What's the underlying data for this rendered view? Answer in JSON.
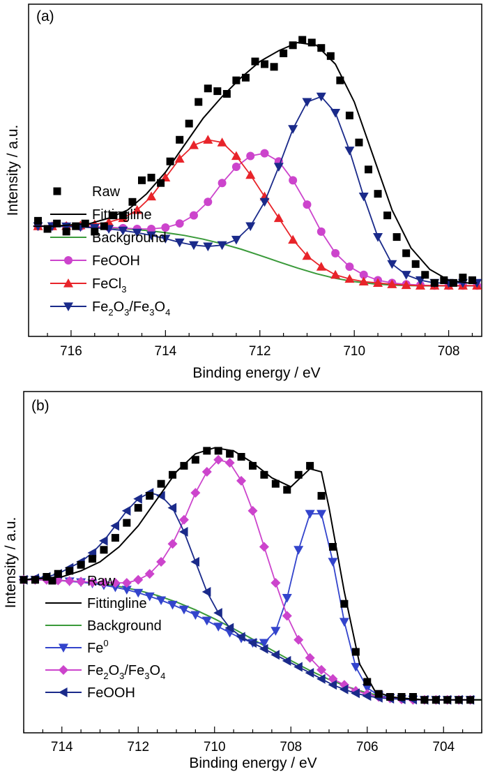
{
  "chart_data": [
    {
      "type": "scatter",
      "panel_label": "(a)",
      "xlabel": "Binding energy / eV",
      "ylabel": "Intensity / a.u.",
      "xlim": [
        716.9,
        707.3
      ],
      "x_reversed": true,
      "ylim": [
        0,
        1
      ],
      "xticks": [
        "716",
        "714",
        "712",
        "710",
        "708"
      ],
      "legend_position": "lower-left",
      "series": [
        {
          "name": "Raw",
          "style": "scatter",
          "marker": "square",
          "color": "#000000",
          "x": [
            716.7,
            716.5,
            716.3,
            716.1,
            715.9,
            715.7,
            715.5,
            715.3,
            715.1,
            714.9,
            714.7,
            714.5,
            714.3,
            714.1,
            713.9,
            713.7,
            713.5,
            713.3,
            713.1,
            712.9,
            712.7,
            712.5,
            712.3,
            712.1,
            711.9,
            711.7,
            711.5,
            711.3,
            711.1,
            710.9,
            710.7,
            710.5,
            710.3,
            710.1,
            709.9,
            709.7,
            709.5,
            709.3,
            709.1,
            708.9,
            708.7,
            708.5,
            708.3,
            708.1,
            707.9,
            707.7,
            707.5
          ],
          "values": [
            0.26,
            0.23,
            0.25,
            0.22,
            0.24,
            0.25,
            0.22,
            0.24,
            0.28,
            0.28,
            0.33,
            0.41,
            0.42,
            0.4,
            0.48,
            0.56,
            0.62,
            0.7,
            0.75,
            0.74,
            0.73,
            0.78,
            0.79,
            0.85,
            0.84,
            0.83,
            0.88,
            0.91,
            0.93,
            0.92,
            0.9,
            0.87,
            0.78,
            0.65,
            0.55,
            0.45,
            0.36,
            0.28,
            0.2,
            0.14,
            0.1,
            0.06,
            0.03,
            0.04,
            0.03,
            0.05,
            0.04
          ]
        },
        {
          "name": "Fitting line",
          "style": "line",
          "color": "#000000",
          "x": [
            716.8,
            716.4,
            716,
            715.6,
            715.2,
            714.8,
            714.4,
            714,
            713.6,
            713.2,
            712.8,
            712.4,
            712,
            711.6,
            711.2,
            710.8,
            710.4,
            710,
            709.6,
            709.2,
            708.8,
            708.4,
            708,
            707.6,
            707.4
          ],
          "values": [
            0.24,
            0.24,
            0.245,
            0.25,
            0.27,
            0.3,
            0.36,
            0.44,
            0.54,
            0.64,
            0.72,
            0.79,
            0.85,
            0.89,
            0.92,
            0.91,
            0.84,
            0.7,
            0.5,
            0.3,
            0.16,
            0.08,
            0.04,
            0.03,
            0.03
          ]
        },
        {
          "name": "Background",
          "style": "line",
          "color": "#3a9a3a",
          "x": [
            716.8,
            716.4,
            716,
            715.6,
            715.2,
            714.8,
            714.4,
            714,
            713.6,
            713.2,
            712.8,
            712.4,
            712,
            711.6,
            711.2,
            710.8,
            710.4,
            710,
            709.6,
            709.2,
            708.8,
            708.4,
            708,
            707.6,
            707.4
          ],
          "values": [
            0.24,
            0.24,
            0.239,
            0.237,
            0.234,
            0.23,
            0.224,
            0.216,
            0.206,
            0.192,
            0.175,
            0.155,
            0.132,
            0.108,
            0.085,
            0.064,
            0.047,
            0.035,
            0.027,
            0.022,
            0.02,
            0.019,
            0.019,
            0.019,
            0.019
          ]
        },
        {
          "name": "FeOOH",
          "style": "line+marker",
          "marker": "circle",
          "color": "#cc44cc",
          "x": [
            716.7,
            716.4,
            716.1,
            715.8,
            715.5,
            715.2,
            714.9,
            714.6,
            714.3,
            714,
            713.7,
            713.4,
            713.1,
            712.8,
            712.5,
            712.2,
            711.9,
            711.6,
            711.3,
            711,
            710.7,
            710.4,
            710.1,
            709.8,
            709.5,
            709.2,
            708.9,
            708.6,
            708.3,
            708,
            707.7,
            707.4
          ],
          "values": [
            0.24,
            0.24,
            0.24,
            0.239,
            0.238,
            0.236,
            0.233,
            0.23,
            0.23,
            0.235,
            0.25,
            0.28,
            0.33,
            0.4,
            0.46,
            0.5,
            0.51,
            0.48,
            0.41,
            0.32,
            0.22,
            0.14,
            0.09,
            0.06,
            0.04,
            0.03,
            0.025,
            0.022,
            0.02,
            0.02,
            0.02,
            0.02
          ]
        },
        {
          "name": "FeCl3",
          "style": "line+marker",
          "marker": "triangle-up",
          "color": "#e8242a",
          "x": [
            716.7,
            716.4,
            716.1,
            715.8,
            715.5,
            715.2,
            714.9,
            714.6,
            714.3,
            714,
            713.7,
            713.4,
            713.1,
            712.8,
            712.5,
            712.2,
            711.9,
            711.6,
            711.3,
            711,
            710.7,
            710.4,
            710.1,
            709.8,
            709.5,
            709.2,
            708.9,
            708.6,
            708.3,
            708,
            707.7,
            707.4
          ],
          "values": [
            0.24,
            0.24,
            0.241,
            0.243,
            0.247,
            0.255,
            0.27,
            0.3,
            0.35,
            0.42,
            0.49,
            0.54,
            0.56,
            0.55,
            0.5,
            0.43,
            0.35,
            0.27,
            0.19,
            0.13,
            0.09,
            0.06,
            0.045,
            0.035,
            0.03,
            0.025,
            0.022,
            0.02,
            0.02,
            0.02,
            0.02,
            0.02
          ]
        },
        {
          "name": "Fe2O3/Fe3O4",
          "style": "line+marker",
          "marker": "triangle-down",
          "color": "#1a2a8a",
          "x": [
            716.7,
            716.4,
            716.1,
            715.8,
            715.5,
            715.2,
            714.9,
            714.6,
            714.3,
            714,
            713.7,
            713.4,
            713.1,
            712.8,
            712.5,
            712.2,
            711.9,
            711.6,
            711.3,
            711,
            710.7,
            710.4,
            710.1,
            709.8,
            709.5,
            709.2,
            708.9,
            708.6,
            708.3,
            708,
            707.7,
            707.4
          ],
          "values": [
            0.24,
            0.24,
            0.239,
            0.237,
            0.234,
            0.23,
            0.224,
            0.216,
            0.206,
            0.194,
            0.18,
            0.17,
            0.165,
            0.17,
            0.19,
            0.24,
            0.33,
            0.46,
            0.6,
            0.7,
            0.72,
            0.66,
            0.52,
            0.35,
            0.2,
            0.1,
            0.06,
            0.04,
            0.03,
            0.03,
            0.03,
            0.03
          ]
        }
      ]
    },
    {
      "type": "scatter",
      "panel_label": "(b)",
      "xlabel": "Binding energy / eV",
      "ylabel": "Intensity / a.u.",
      "xlim": [
        715,
        703
      ],
      "x_reversed": true,
      "ylim": [
        0,
        1
      ],
      "xticks": [
        "714",
        "712",
        "710",
        "708",
        "706",
        "704"
      ],
      "legend_position": "lower-left",
      "series": [
        {
          "name": "Raw",
          "style": "scatter",
          "marker": "square",
          "color": "#000000",
          "x": [
            715,
            714.7,
            714.4,
            714.1,
            713.8,
            713.5,
            713.2,
            712.9,
            712.6,
            712.3,
            712,
            711.7,
            711.4,
            711.1,
            710.8,
            710.5,
            710.2,
            709.9,
            709.6,
            709.3,
            709,
            708.7,
            708.4,
            708.1,
            707.8,
            707.5,
            707.2,
            706.9,
            706.6,
            706.3,
            706,
            705.7,
            705.4,
            705.1,
            704.8,
            704.5,
            704.2,
            703.9,
            703.6,
            703.3
          ],
          "values": [
            0.44,
            0.44,
            0.45,
            0.46,
            0.47,
            0.49,
            0.51,
            0.54,
            0.58,
            0.63,
            0.68,
            0.72,
            0.76,
            0.79,
            0.82,
            0.84,
            0.87,
            0.87,
            0.86,
            0.85,
            0.82,
            0.79,
            0.76,
            0.74,
            0.79,
            0.82,
            0.72,
            0.55,
            0.36,
            0.2,
            0.1,
            0.06,
            0.05,
            0.05,
            0.05,
            0.04,
            0.04,
            0.04,
            0.04,
            0.04
          ]
        },
        {
          "name": "Fitting line",
          "style": "line",
          "color": "#000000",
          "x": [
            715,
            714.5,
            714,
            713.5,
            713,
            712.5,
            712,
            711.5,
            711,
            710.5,
            710,
            709.5,
            709,
            708.5,
            708,
            707.5,
            707.2,
            707,
            706.6,
            706.2,
            705.8,
            705.4,
            705,
            704.5,
            704,
            703.5,
            703
          ],
          "values": [
            0.44,
            0.445,
            0.45,
            0.47,
            0.5,
            0.55,
            0.62,
            0.71,
            0.8,
            0.86,
            0.88,
            0.87,
            0.83,
            0.78,
            0.75,
            0.81,
            0.8,
            0.68,
            0.4,
            0.16,
            0.07,
            0.05,
            0.045,
            0.04,
            0.04,
            0.04,
            0.04
          ]
        },
        {
          "name": "Background",
          "style": "line",
          "color": "#3a9a3a",
          "x": [
            715,
            714.5,
            714,
            713.5,
            713,
            712.5,
            712,
            711.5,
            711,
            710.5,
            710,
            709.5,
            709,
            708.5,
            708,
            707.5,
            707,
            706.5,
            706,
            705.5,
            705,
            704.5,
            704,
            703.5,
            703
          ],
          "values": [
            0.44,
            0.44,
            0.438,
            0.434,
            0.428,
            0.418,
            0.405,
            0.388,
            0.366,
            0.34,
            0.31,
            0.277,
            0.242,
            0.206,
            0.171,
            0.138,
            0.108,
            0.083,
            0.063,
            0.05,
            0.043,
            0.04,
            0.04,
            0.04,
            0.04
          ]
        },
        {
          "name": "Fe0",
          "style": "line+marker",
          "marker": "triangle-down",
          "color": "#3344cc",
          "x": [
            715,
            714.7,
            714.4,
            714.1,
            713.8,
            713.5,
            713.2,
            712.9,
            712.6,
            712.3,
            712,
            711.7,
            711.4,
            711.1,
            710.8,
            710.5,
            710.2,
            709.9,
            709.6,
            709.3,
            709,
            708.7,
            708.4,
            708.1,
            707.8,
            707.5,
            707.2,
            706.9,
            706.6,
            706.3,
            706,
            705.7,
            705.4,
            705.1,
            704.8,
            704.5,
            704.2,
            703.9,
            703.6,
            703.3
          ],
          "values": [
            0.44,
            0.44,
            0.44,
            0.438,
            0.435,
            0.432,
            0.428,
            0.422,
            0.415,
            0.407,
            0.397,
            0.385,
            0.372,
            0.357,
            0.341,
            0.323,
            0.304,
            0.284,
            0.264,
            0.245,
            0.23,
            0.23,
            0.27,
            0.38,
            0.54,
            0.66,
            0.66,
            0.5,
            0.3,
            0.15,
            0.08,
            0.055,
            0.047,
            0.043,
            0.041,
            0.04,
            0.04,
            0.04,
            0.04,
            0.04
          ]
        },
        {
          "name": "Fe2O3/Fe3O4",
          "style": "line+marker",
          "marker": "diamond",
          "color": "#cc44cc",
          "x": [
            715,
            714.7,
            714.4,
            714.1,
            713.8,
            713.5,
            713.2,
            712.9,
            712.6,
            712.3,
            712,
            711.7,
            711.4,
            711.1,
            710.8,
            710.5,
            710.2,
            709.9,
            709.6,
            709.3,
            709,
            708.7,
            708.4,
            708.1,
            707.8,
            707.5,
            707.2,
            706.9,
            706.6,
            706.3,
            706,
            705.7,
            705.4,
            705.1,
            704.8,
            704.5,
            704.2,
            703.9,
            703.6,
            703.3
          ],
          "values": [
            0.44,
            0.44,
            0.44,
            0.438,
            0.436,
            0.434,
            0.432,
            0.43,
            0.43,
            0.43,
            0.44,
            0.46,
            0.5,
            0.56,
            0.64,
            0.73,
            0.8,
            0.84,
            0.83,
            0.77,
            0.67,
            0.55,
            0.43,
            0.32,
            0.24,
            0.18,
            0.14,
            0.11,
            0.09,
            0.07,
            0.06,
            0.05,
            0.045,
            0.042,
            0.04,
            0.04,
            0.04,
            0.04,
            0.04,
            0.04
          ]
        },
        {
          "name": "FeOOH",
          "style": "line+marker",
          "marker": "triangle-left",
          "color": "#1a2a8a",
          "x": [
            715,
            714.7,
            714.4,
            714.1,
            713.8,
            713.5,
            713.2,
            712.9,
            712.6,
            712.3,
            712,
            711.7,
            711.4,
            711.1,
            710.8,
            710.5,
            710.2,
            709.9,
            709.6,
            709.3,
            709,
            708.7,
            708.4,
            708.1,
            707.8,
            707.5,
            707.2,
            706.9,
            706.6,
            706.3,
            706,
            705.7,
            705.4,
            705.1,
            704.8,
            704.5,
            704.2,
            703.9,
            703.6,
            703.3
          ],
          "values": [
            0.44,
            0.445,
            0.45,
            0.46,
            0.48,
            0.5,
            0.53,
            0.57,
            0.62,
            0.67,
            0.71,
            0.73,
            0.72,
            0.68,
            0.6,
            0.5,
            0.4,
            0.33,
            0.28,
            0.25,
            0.23,
            0.21,
            0.19,
            0.17,
            0.15,
            0.13,
            0.11,
            0.09,
            0.075,
            0.062,
            0.053,
            0.047,
            0.044,
            0.042,
            0.041,
            0.04,
            0.04,
            0.04,
            0.04,
            0.04
          ]
        }
      ]
    }
  ]
}
